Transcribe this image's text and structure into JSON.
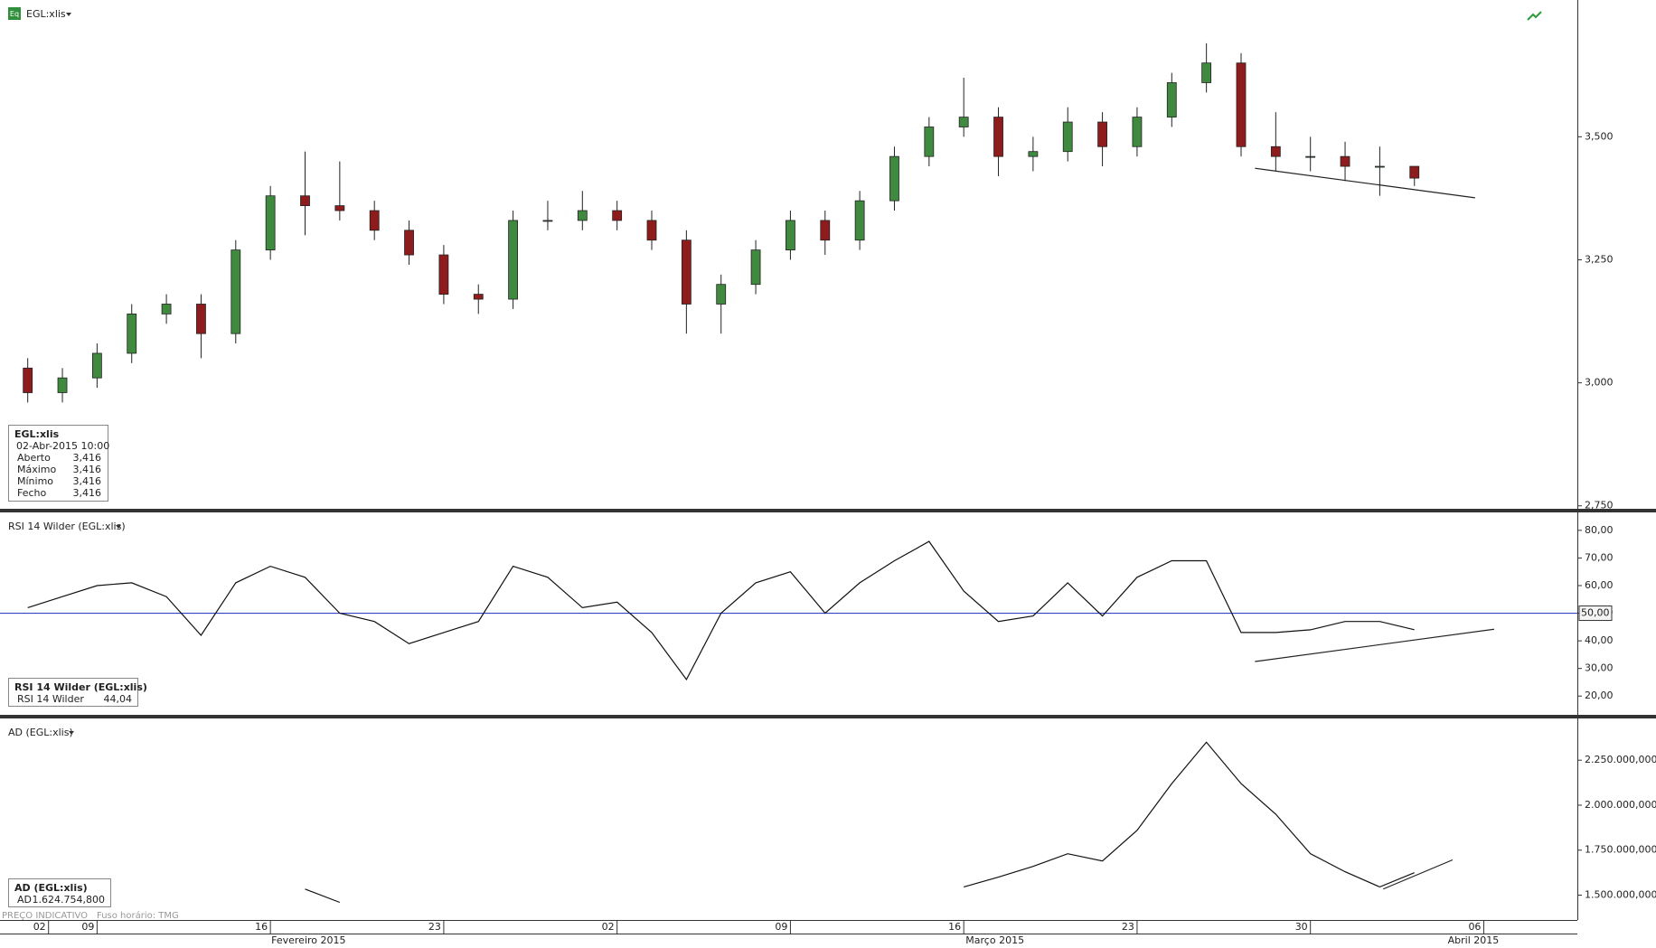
{
  "header": {
    "icon": "Eq",
    "symbol": "EGL:xlis"
  },
  "info_box": {
    "title": "EGL:xlis",
    "date": "02-Abr-2015 10:00",
    "rows": [
      {
        "label": "Aberto",
        "value": "3,416"
      },
      {
        "label": "Máximo",
        "value": "3,416"
      },
      {
        "label": "Mínimo",
        "value": "3,416"
      },
      {
        "label": "Fecho",
        "value": "3,416"
      }
    ]
  },
  "rsi_box": {
    "title": "RSI 14 Wilder (EGL:xlis)",
    "label": "RSI 14 Wilder",
    "value": "44,04"
  },
  "ad_box": {
    "title": "AD (EGL:xlis)",
    "label": "AD",
    "value": "1.624.754,800"
  },
  "footer": {
    "left": "PREÇO INDICATIVO",
    "right": "Fuso horário: TMG"
  },
  "x_axis": {
    "xlim": [
      -2.8,
      42.7
    ],
    "xticks": [
      {
        "value": -1.4,
        "label": "02"
      },
      {
        "value": 0,
        "label": "09"
      },
      {
        "value": 5,
        "label": "16"
      },
      {
        "value": 10,
        "label": "23"
      },
      {
        "value": 15,
        "label": "02"
      },
      {
        "value": 20,
        "label": "09"
      },
      {
        "value": 25,
        "label": "16"
      },
      {
        "value": 30,
        "label": "23"
      },
      {
        "value": 35,
        "label": "30"
      },
      {
        "value": 40,
        "label": "06"
      }
    ],
    "month_labels": [
      {
        "value": 6.1,
        "label": "Fevereiro 2015"
      },
      {
        "value": 25.9,
        "label": "Março 2015"
      },
      {
        "value": 39.7,
        "label": "Abril 2015"
      }
    ]
  },
  "chart_data": [
    {
      "type": "candlestick",
      "title": "EGL:xlis",
      "up_color": "#3f8a3f",
      "down_color": "#8e1c1c",
      "x": [
        -2,
        -1,
        0,
        1,
        2,
        3,
        4,
        5,
        6,
        7,
        8,
        9,
        10,
        11,
        12,
        13,
        14,
        15,
        16,
        17,
        18,
        19,
        20,
        21,
        22,
        23,
        24,
        25,
        26,
        27,
        28,
        29,
        30,
        31,
        32,
        33,
        34,
        35,
        36,
        37,
        38
      ],
      "open": [
        3.03,
        2.98,
        3.01,
        3.06,
        3.14,
        3.16,
        3.1,
        3.27,
        3.38,
        3.36,
        3.35,
        3.31,
        3.26,
        3.18,
        3.17,
        3.33,
        3.33,
        3.35,
        3.33,
        3.29,
        3.16,
        3.2,
        3.27,
        3.33,
        3.29,
        3.37,
        3.46,
        3.52,
        3.54,
        3.46,
        3.47,
        3.53,
        3.48,
        3.54,
        3.61,
        3.65,
        3.48,
        3.46,
        3.46,
        3.44,
        3.44
      ],
      "high": [
        3.05,
        3.03,
        3.08,
        3.16,
        3.18,
        3.18,
        3.29,
        3.4,
        3.47,
        3.45,
        3.37,
        3.33,
        3.28,
        3.2,
        3.35,
        3.37,
        3.39,
        3.37,
        3.35,
        3.31,
        3.22,
        3.29,
        3.35,
        3.35,
        3.39,
        3.48,
        3.54,
        3.62,
        3.56,
        3.5,
        3.56,
        3.55,
        3.56,
        3.63,
        3.69,
        3.67,
        3.55,
        3.5,
        3.49,
        3.48,
        3.44
      ],
      "low": [
        2.96,
        2.96,
        2.99,
        3.04,
        3.12,
        3.05,
        3.08,
        3.25,
        3.3,
        3.33,
        3.29,
        3.24,
        3.16,
        3.14,
        3.15,
        3.31,
        3.31,
        3.31,
        3.27,
        3.1,
        3.1,
        3.18,
        3.25,
        3.26,
        3.27,
        3.35,
        3.44,
        3.5,
        3.42,
        3.43,
        3.45,
        3.44,
        3.46,
        3.52,
        3.59,
        3.46,
        3.43,
        3.43,
        3.41,
        3.38,
        3.4
      ],
      "close": [
        2.98,
        3.01,
        3.06,
        3.14,
        3.16,
        3.1,
        3.27,
        3.38,
        3.36,
        3.35,
        3.31,
        3.26,
        3.18,
        3.17,
        3.33,
        3.33,
        3.35,
        3.33,
        3.29,
        3.16,
        3.2,
        3.27,
        3.33,
        3.29,
        3.37,
        3.46,
        3.52,
        3.54,
        3.46,
        3.47,
        3.53,
        3.48,
        3.54,
        3.61,
        3.65,
        3.48,
        3.46,
        3.46,
        3.44,
        3.44,
        3.416
      ],
      "trendline": {
        "x": [
          33.4,
          39.75
        ],
        "y": [
          3.436,
          3.376
        ]
      },
      "ylim": [
        2.744,
        3.778
      ],
      "yticks": [
        {
          "value": 2.75,
          "label": "2,750"
        },
        {
          "value": 3.0,
          "label": "3,000"
        },
        {
          "value": 3.25,
          "label": "3,250"
        },
        {
          "value": 3.5,
          "label": "3,500"
        }
      ]
    },
    {
      "type": "line",
      "title": "RSI 14 Wilder (EGL:xlis)",
      "x": [
        -2,
        -1,
        0,
        1,
        2,
        3,
        4,
        5,
        6,
        7,
        8,
        9,
        10,
        11,
        12,
        13,
        14,
        15,
        16,
        17,
        18,
        19,
        20,
        21,
        22,
        23,
        24,
        25,
        26,
        27,
        28,
        29,
        30,
        31,
        32,
        33,
        34,
        35,
        36,
        37,
        38
      ],
      "series": [
        {
          "name": "RSI 14 Wilder",
          "color": "#111111",
          "values": [
            52,
            56,
            60,
            61,
            56,
            42,
            61,
            67,
            63,
            50,
            47,
            39,
            43,
            47,
            67,
            63,
            52,
            54,
            43,
            26,
            50,
            61,
            65,
            50,
            61,
            69,
            76,
            58,
            47,
            49,
            61,
            49,
            63,
            69,
            69,
            43,
            43,
            44,
            47,
            47,
            44.04
          ]
        }
      ],
      "reference": {
        "value": 50,
        "label": "50,00",
        "color": "#3344cc"
      },
      "trendline": {
        "x": [
          33.4,
          40.3
        ],
        "y": [
          32.5,
          44.2
        ]
      },
      "ylim": [
        13.2,
        86.5
      ],
      "yticks": [
        {
          "value": 20,
          "label": "20,00"
        },
        {
          "value": 30,
          "label": "30,00"
        },
        {
          "value": 40,
          "label": "40,00"
        },
        {
          "value": 50,
          "label": "50,00"
        },
        {
          "value": 60,
          "label": "60,00"
        },
        {
          "value": 70,
          "label": "70,00"
        },
        {
          "value": 80,
          "label": "80,00"
        }
      ]
    },
    {
      "type": "line",
      "title": "AD (EGL:xlis)",
      "x": [
        -2,
        -1,
        0,
        1,
        2,
        3,
        4,
        5,
        6,
        7,
        8,
        9,
        10,
        11,
        12,
        13,
        14,
        15,
        16,
        17,
        18,
        19,
        20,
        21,
        22,
        23,
        24,
        25,
        26,
        27,
        28,
        29,
        30,
        31,
        32,
        33,
        34,
        35,
        36,
        37,
        38
      ],
      "series": [
        {
          "name": "AD",
          "color": "#111111",
          "values": [
            null,
            null,
            null,
            null,
            null,
            null,
            null,
            null,
            1534000,
            1460000,
            null,
            null,
            null,
            null,
            null,
            null,
            null,
            null,
            null,
            null,
            null,
            null,
            null,
            null,
            null,
            null,
            null,
            1546000,
            1600000,
            1660000,
            1730000,
            1690000,
            1860000,
            2120000,
            2350000,
            2120000,
            1950000,
            1730000,
            1630000,
            1546000,
            1624754.8
          ]
        }
      ],
      "trendline": {
        "x": [
          37.1,
          39.1
        ],
        "y": [
          1534000,
          1696000
        ]
      },
      "ylim": [
        1362000,
        2482000
      ],
      "yticks": [
        {
          "value": 1500000,
          "label": "1.500.000,000"
        },
        {
          "value": 1750000,
          "label": "1.750.000,000"
        },
        {
          "value": 2000000,
          "label": "2.000.000,000"
        },
        {
          "value": 2250000,
          "label": "2.250.000,000"
        }
      ]
    }
  ]
}
